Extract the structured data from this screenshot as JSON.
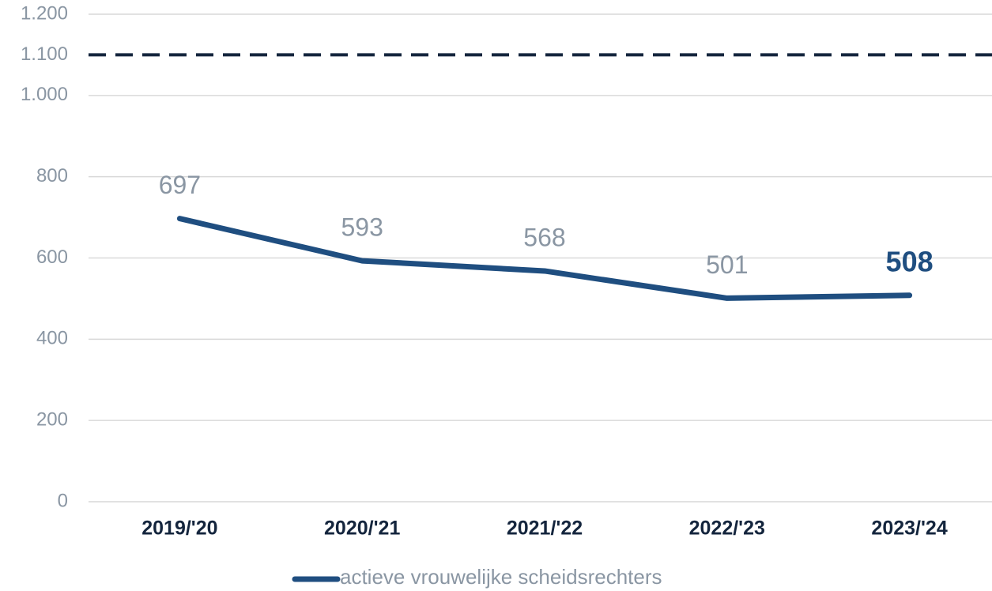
{
  "chart_data": {
    "type": "line",
    "categories": [
      "2019/'20",
      "2020/'21",
      "2021/'22",
      "2022/'23",
      "2023/'24"
    ],
    "series": [
      {
        "name": "actieve vrouwelijke scheidsrechters",
        "color": "#1f4e80",
        "values": [
          697,
          593,
          568,
          501,
          508
        ]
      }
    ],
    "ylim": [
      0,
      1200
    ],
    "yticks": [
      0,
      200,
      400,
      600,
      800,
      {
        "value": 1000,
        "label": "1.000"
      },
      {
        "value": 1100,
        "label": "1.100"
      },
      {
        "value": 1200,
        "label": "1.200"
      }
    ],
    "reference_line": {
      "value": 1100,
      "color": "#14253d"
    },
    "grid": true,
    "legend": "bottom"
  }
}
